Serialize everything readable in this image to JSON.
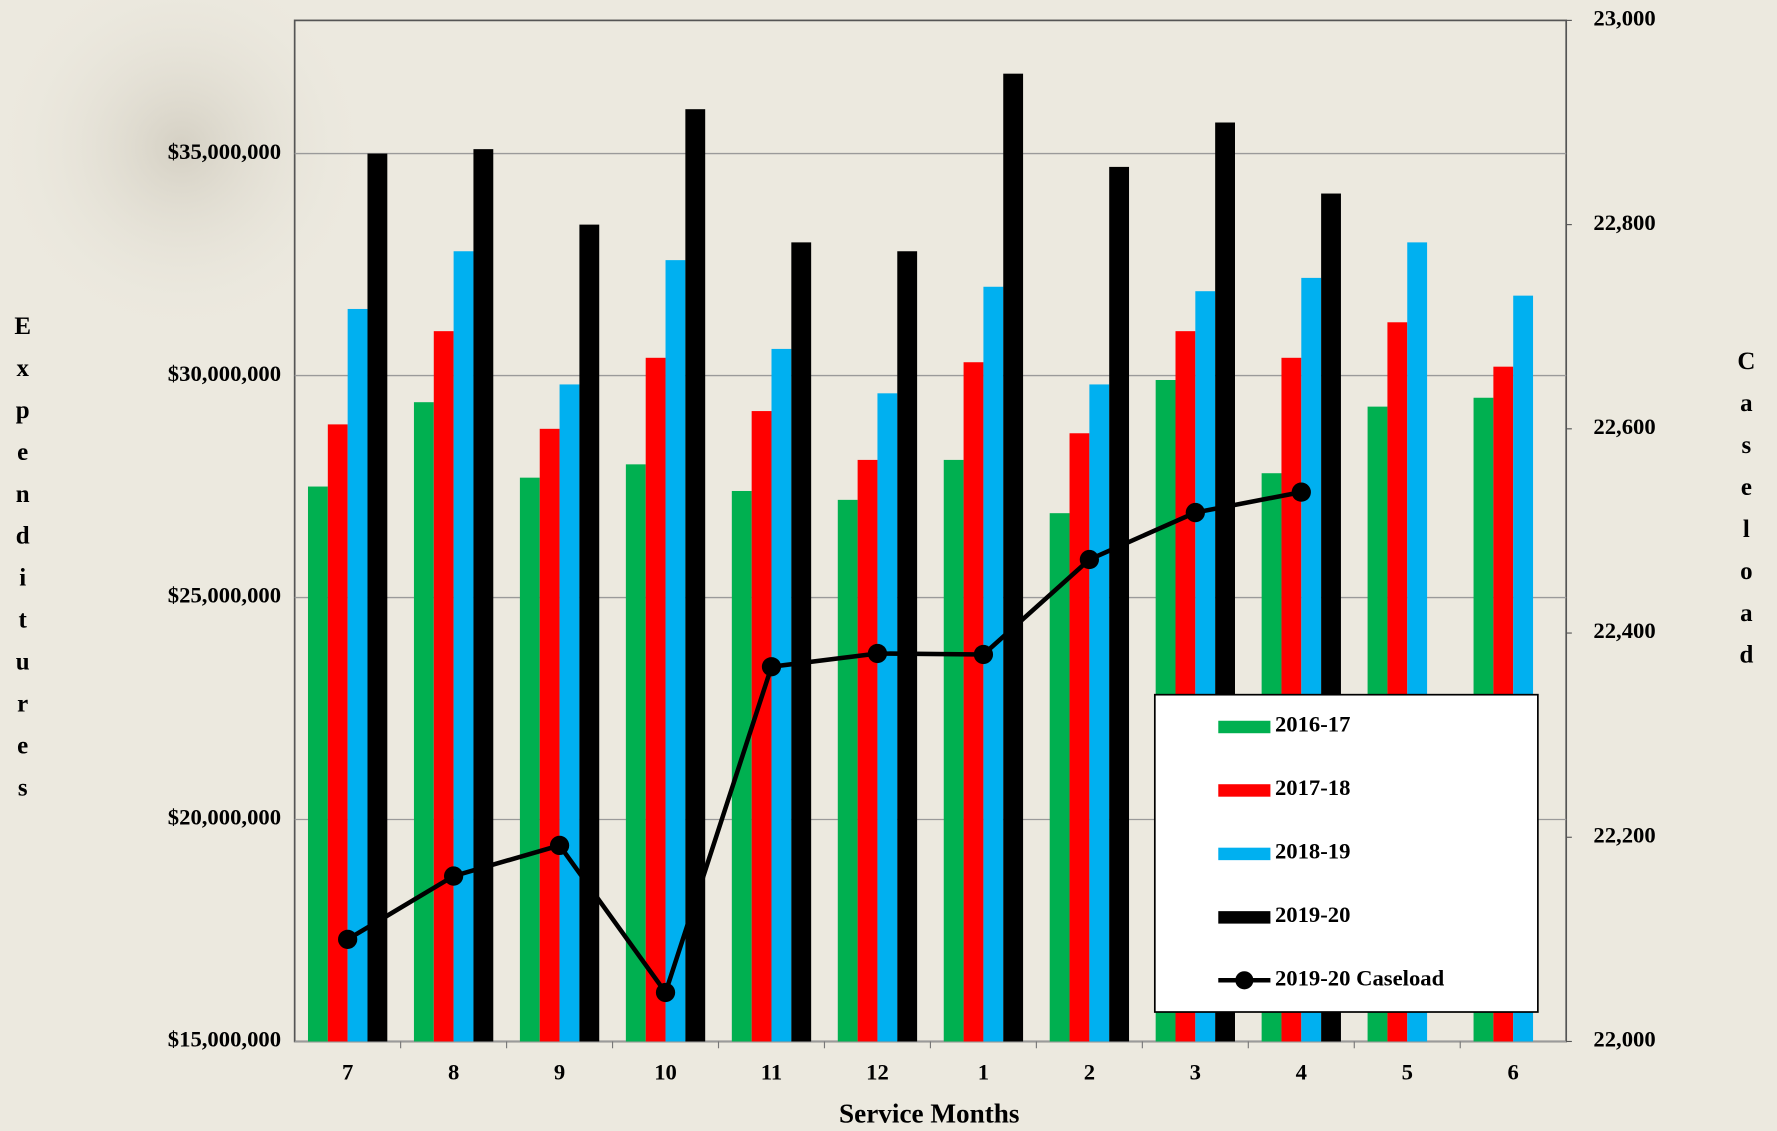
{
  "chart_data": {
    "type": "bar",
    "x_label": "Service Months",
    "y_label": "Expenditures",
    "y2_label": "Caseload",
    "categories": [
      "7",
      "8",
      "9",
      "10",
      "11",
      "12",
      "1",
      "2",
      "3",
      "4",
      "5",
      "6"
    ],
    "series": [
      {
        "name": "2016-17",
        "color": "#00b050",
        "values": [
          27500000,
          29400000,
          27700000,
          28000000,
          27400000,
          27200000,
          28100000,
          26900000,
          29900000,
          27800000,
          29300000,
          29500000
        ]
      },
      {
        "name": "2017-18",
        "color": "#ff0000",
        "values": [
          28900000,
          31000000,
          28800000,
          30400000,
          29200000,
          28100000,
          30300000,
          28700000,
          31000000,
          30400000,
          31200000,
          30200000
        ]
      },
      {
        "name": "2018-19",
        "color": "#00b0f0",
        "values": [
          31500000,
          32800000,
          29800000,
          32600000,
          30600000,
          29600000,
          32000000,
          29800000,
          31900000,
          32200000,
          33000000,
          31800000
        ]
      },
      {
        "name": "2019-20",
        "color": "#000000",
        "values": [
          35000000,
          35100000,
          33400000,
          36000000,
          33000000,
          32800000,
          36800000,
          34700000,
          35700000,
          34100000,
          null,
          null
        ]
      },
      {
        "name": "2019-20 Caseload",
        "color": "#000000",
        "type": "line",
        "axis": "y2",
        "values": [
          22100,
          22162,
          22192,
          22048,
          22367,
          22380,
          22379,
          22472,
          22518,
          22538,
          null,
          null
        ]
      }
    ],
    "ylim": [
      15000000,
      38000000
    ],
    "yticks": [
      {
        "value": 15000000,
        "label": "$15,000,000"
      },
      {
        "value": 20000000,
        "label": "$20,000,000"
      },
      {
        "value": 25000000,
        "label": "$25,000,000"
      },
      {
        "value": 30000000,
        "label": "$30,000,000"
      },
      {
        "value": 35000000,
        "label": "$35,000,000"
      }
    ],
    "y2lim": [
      22000,
      23000
    ],
    "y2ticks": [
      {
        "value": 22000,
        "label": "22,000"
      },
      {
        "value": 22200,
        "label": "22,200"
      },
      {
        "value": 22400,
        "label": "22,400"
      },
      {
        "value": 22600,
        "label": "22,600"
      },
      {
        "value": 22800,
        "label": "22,800"
      },
      {
        "value": 23000,
        "label": "23,000"
      }
    ],
    "grid": true,
    "legend": "bottom-right"
  }
}
